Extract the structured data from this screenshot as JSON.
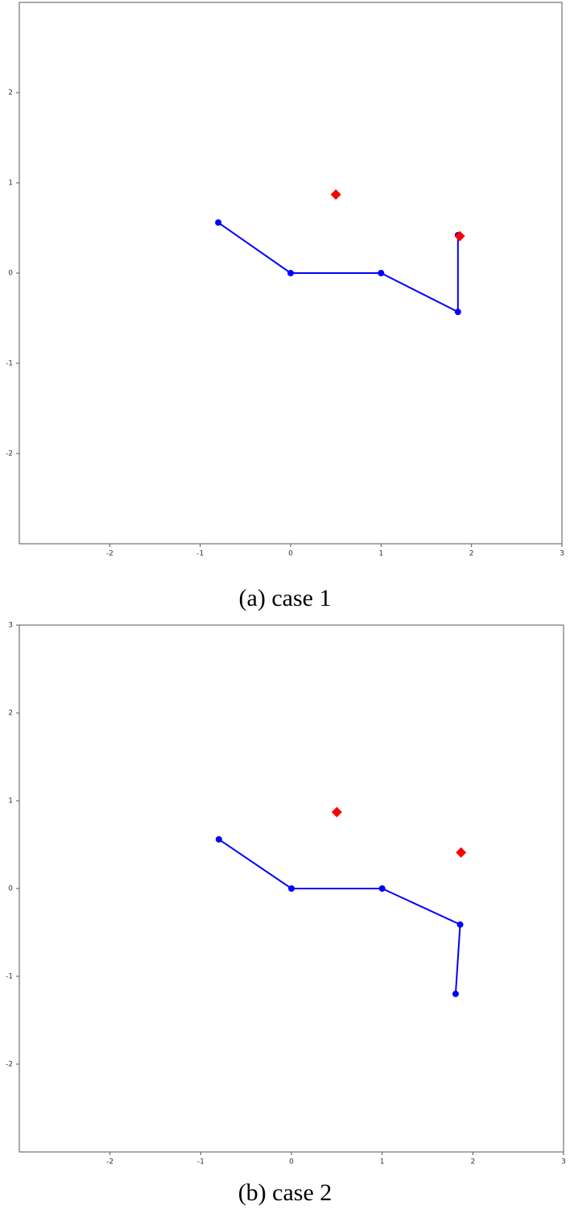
{
  "chart_data": [
    {
      "type": "line",
      "caption": "(a) case 1",
      "xlim": [
        -3,
        3
      ],
      "ylim": [
        -3,
        3
      ],
      "xticks": [
        -2,
        -1,
        0,
        1,
        2,
        3
      ],
      "yticks": [
        -2,
        -1,
        0,
        1,
        2
      ],
      "series": [
        {
          "color": "#0000ff",
          "x": [
            -0.8,
            0,
            1,
            1.85,
            1.85
          ],
          "values": [
            0.56,
            0,
            0,
            -0.43,
            0.42
          ]
        }
      ],
      "markers": {
        "color": "#ff0000",
        "x": [
          0.5,
          1.87
        ],
        "values": [
          0.87,
          0.41
        ]
      }
    },
    {
      "type": "line",
      "caption": "(b) case 2",
      "xlim": [
        -3,
        3
      ],
      "ylim": [
        -3,
        3
      ],
      "xticks": [
        -2,
        -1,
        0,
        1,
        2,
        3
      ],
      "yticks": [
        -2,
        -1,
        0,
        1,
        2,
        3
      ],
      "series": [
        {
          "color": "#0000ff",
          "x": [
            -0.8,
            0,
            1,
            1.86,
            1.81
          ],
          "values": [
            0.56,
            0,
            0,
            -0.41,
            -1.2
          ]
        }
      ],
      "markers": {
        "color": "#ff0000",
        "x": [
          0.5,
          1.87
        ],
        "values": [
          0.87,
          0.41
        ]
      }
    }
  ]
}
